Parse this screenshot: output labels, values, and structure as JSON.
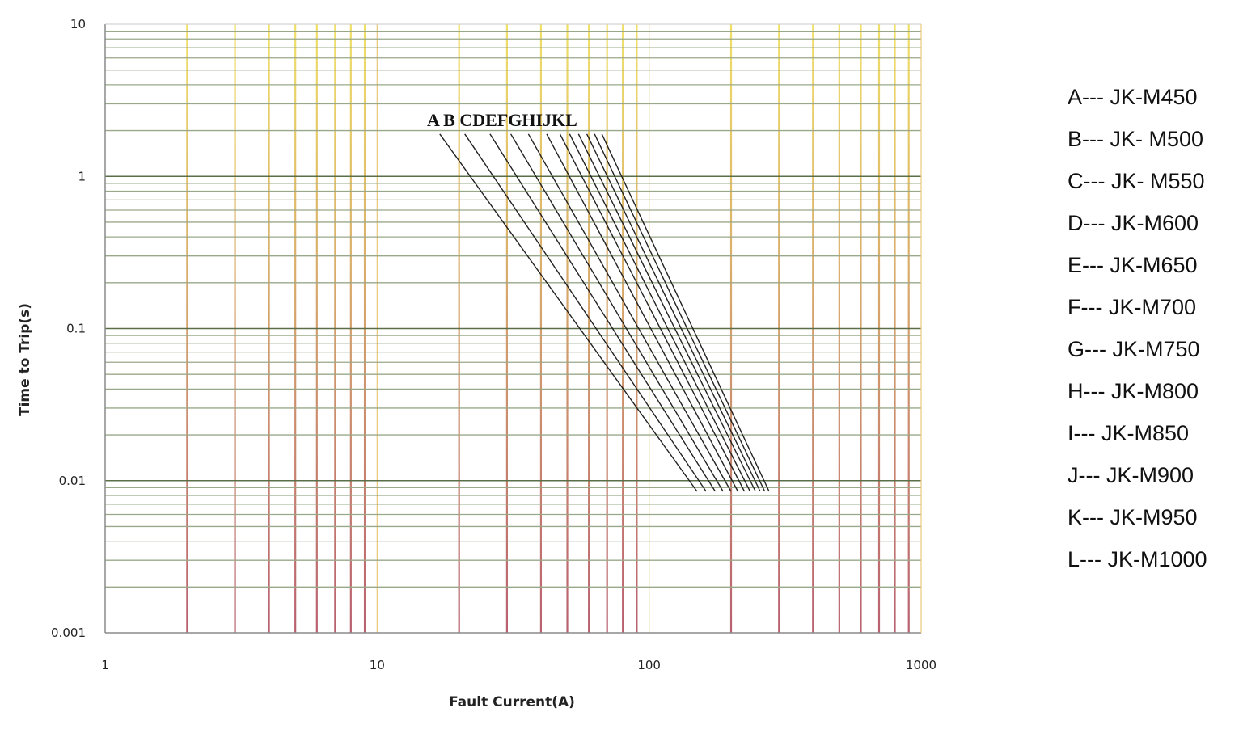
{
  "chart_data": {
    "type": "line",
    "title": "",
    "xlabel": "Fault Current(A)",
    "ylabel": "Time to Trip(s)",
    "x_scale": "log",
    "y_scale": "log",
    "xlim": [
      1,
      1000
    ],
    "ylim": [
      0.001,
      10
    ],
    "x_ticks": [
      "1",
      "10",
      "100",
      "1000"
    ],
    "y_ticks": [
      "0.001",
      "0.01",
      "0.1",
      "1",
      "10"
    ],
    "grid": true,
    "legend_position": "right",
    "series": [
      {
        "name": "A",
        "x": [
          17,
          150
        ],
        "y": [
          1.9,
          0.0085
        ]
      },
      {
        "name": "B",
        "x": [
          21,
          162
        ],
        "y": [
          1.9,
          0.0085
        ]
      },
      {
        "name": "C",
        "x": [
          26,
          175
        ],
        "y": [
          1.9,
          0.0085
        ]
      },
      {
        "name": "D",
        "x": [
          31,
          187
        ],
        "y": [
          1.9,
          0.0085
        ]
      },
      {
        "name": "E",
        "x": [
          36,
          200
        ],
        "y": [
          1.9,
          0.0085
        ]
      },
      {
        "name": "F",
        "x": [
          42,
          212
        ],
        "y": [
          1.9,
          0.0085
        ]
      },
      {
        "name": "G",
        "x": [
          47,
          224
        ],
        "y": [
          1.9,
          0.0085
        ]
      },
      {
        "name": "H",
        "x": [
          51,
          235
        ],
        "y": [
          1.9,
          0.0085
        ]
      },
      {
        "name": "I",
        "x": [
          55,
          246
        ],
        "y": [
          1.9,
          0.0085
        ]
      },
      {
        "name": "J",
        "x": [
          59,
          256
        ],
        "y": [
          1.9,
          0.0085
        ]
      },
      {
        "name": "K",
        "x": [
          63,
          266
        ],
        "y": [
          1.9,
          0.0085
        ]
      },
      {
        "name": "L",
        "x": [
          67,
          276
        ],
        "y": [
          1.9,
          0.0085
        ]
      }
    ],
    "curve_labels": "A B CDEFGHIJKL",
    "legend": [
      "A--- JK-M450",
      "B--- JK- M500",
      "C--- JK- M550",
      "D--- JK-M600",
      "E--- JK-M650",
      "F--- JK-M700",
      "G--- JK-M750",
      "H--- JK-M800",
      "I--- JK-M850",
      "J--- JK-M900",
      "K--- JK-M950",
      "L--- JK-M1000"
    ],
    "colors": {
      "horizontal_grid": "#5a6e48",
      "horizontal_grid_minor": "#9aa88a",
      "vertical_grid_top": "#f0e068",
      "vertical_grid_bottom": "#b86070",
      "curve": "#222222"
    }
  }
}
